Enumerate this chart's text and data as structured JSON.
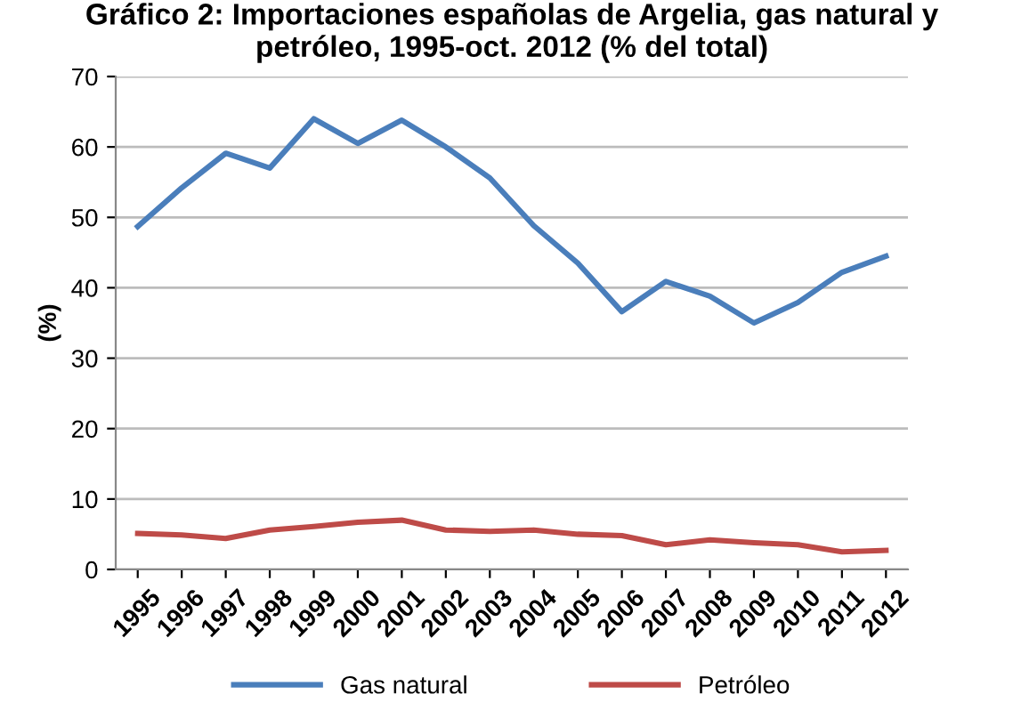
{
  "chart_data": {
    "type": "line",
    "title": "Gráfico 2: Importaciones españolas de Argelia, gas natural y\npetróleo, 1995-oct. 2012 (% del total)",
    "ylabel": "(%)",
    "categories": [
      "1995",
      "1996",
      "1997",
      "1998",
      "1999",
      "2000",
      "2001",
      "2002",
      "2003",
      "2004",
      "2005",
      "2006",
      "2007",
      "2008",
      "2009",
      "2010",
      "2011",
      "2012"
    ],
    "series": [
      {
        "name": "Gas natural",
        "color": "#4a7ebb",
        "values": [
          48.7,
          54.2,
          59.1,
          57.0,
          64.0,
          60.5,
          63.8,
          60.0,
          55.6,
          48.8,
          43.5,
          36.6,
          40.9,
          38.8,
          35.0,
          37.9,
          42.2,
          44.5
        ]
      },
      {
        "name": "Petróleo",
        "color": "#be4b48",
        "values": [
          5.1,
          4.9,
          4.4,
          5.6,
          6.1,
          6.7,
          7.0,
          5.6,
          5.4,
          5.6,
          5.0,
          4.8,
          3.5,
          4.2,
          3.8,
          3.5,
          2.5,
          2.7
        ]
      }
    ],
    "ylim": [
      0,
      70
    ],
    "yticks": [
      0,
      10,
      20,
      30,
      40,
      50,
      60,
      70
    ],
    "grid": "y",
    "legend": "bottom",
    "marker": "none",
    "line_style": "solid"
  }
}
